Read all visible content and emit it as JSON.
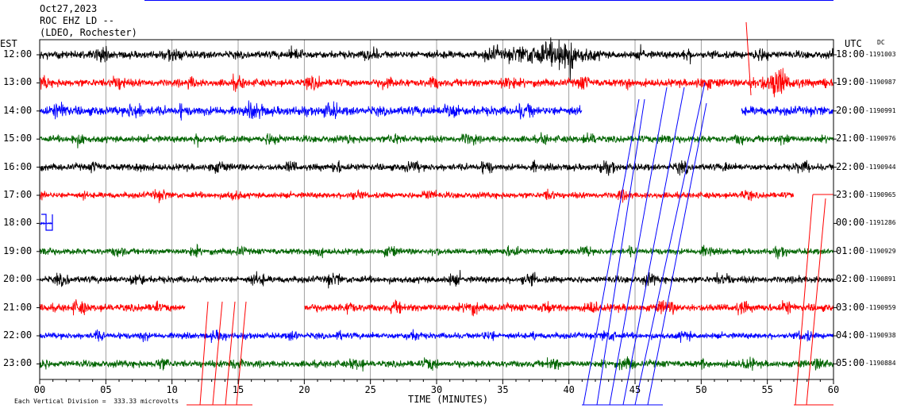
{
  "header": {
    "date": "Oct27,2023",
    "station": "ROC EHZ LD --",
    "network": "(LDEO, Rochester)"
  },
  "left_axis_label": "EST",
  "right_axis_label": "UTC",
  "dc_label": "DC",
  "footer": {
    "scale_note": "Each Vertical Division =  333.33 microvolts",
    "xlabel": "TIME (MINUTES)"
  },
  "chart_data": {
    "type": "line",
    "title": "",
    "xlabel": "TIME (MINUTES)",
    "xlim": [
      0,
      60
    ],
    "x_ticks": [
      "00",
      "05",
      "10",
      "15",
      "20",
      "25",
      "30",
      "35",
      "40",
      "45",
      "50",
      "55",
      "60"
    ],
    "grid": true,
    "colors": [
      "#000000",
      "#ff0000",
      "#0000ff",
      "#006400"
    ],
    "rows": [
      {
        "est": "12:00",
        "utc": "18:00",
        "dc": "-1191003",
        "color": "#000000",
        "amp": 1.0,
        "gaps": []
      },
      {
        "est": "13:00",
        "utc": "19:00",
        "dc": "-1190987",
        "color": "#ff0000",
        "amp": 1.0,
        "gaps": []
      },
      {
        "est": "14:00",
        "utc": "20:00",
        "dc": "-1190991",
        "color": "#0000ff",
        "amp": 1.2,
        "gaps": [
          [
            41,
            53
          ]
        ]
      },
      {
        "est": "15:00",
        "utc": "21:00",
        "dc": "-1190976",
        "color": "#006400",
        "amp": 0.9,
        "gaps": []
      },
      {
        "est": "16:00",
        "utc": "22:00",
        "dc": "-1190944",
        "color": "#000000",
        "amp": 0.9,
        "gaps": []
      },
      {
        "est": "17:00",
        "utc": "23:00",
        "dc": "-1190965",
        "color": "#ff0000",
        "amp": 0.8,
        "gaps": [
          [
            57,
            60
          ]
        ]
      },
      {
        "est": "18:00",
        "utc": "00:00",
        "dc": "-1191286",
        "color": "#0000ff",
        "amp": 0.3,
        "gaps": [
          [
            1,
            60
          ]
        ]
      },
      {
        "est": "19:00",
        "utc": "01:00",
        "dc": "-1190929",
        "color": "#006400",
        "amp": 0.8,
        "gaps": []
      },
      {
        "est": "20:00",
        "utc": "02:00",
        "dc": "-1190891",
        "color": "#000000",
        "amp": 0.9,
        "gaps": []
      },
      {
        "est": "21:00",
        "utc": "03:00",
        "dc": "-1190959",
        "color": "#ff0000",
        "amp": 1.0,
        "gaps": [
          [
            11,
            20
          ]
        ]
      },
      {
        "est": "22:00",
        "utc": "04:00",
        "dc": "-1190938",
        "color": "#0000ff",
        "amp": 0.8,
        "gaps": []
      },
      {
        "est": "23:00",
        "utc": "05:00",
        "dc": "-1190884",
        "color": "#006400",
        "amp": 0.9,
        "gaps": []
      }
    ],
    "events": [
      {
        "row": 0,
        "start": 34,
        "end": 43,
        "amp": 3.5
      },
      {
        "row": 1,
        "start": 53,
        "end": 58,
        "amp": 2.6
      },
      {
        "row": 20,
        "start": 0,
        "end": 0,
        "amp": 0
      }
    ]
  }
}
